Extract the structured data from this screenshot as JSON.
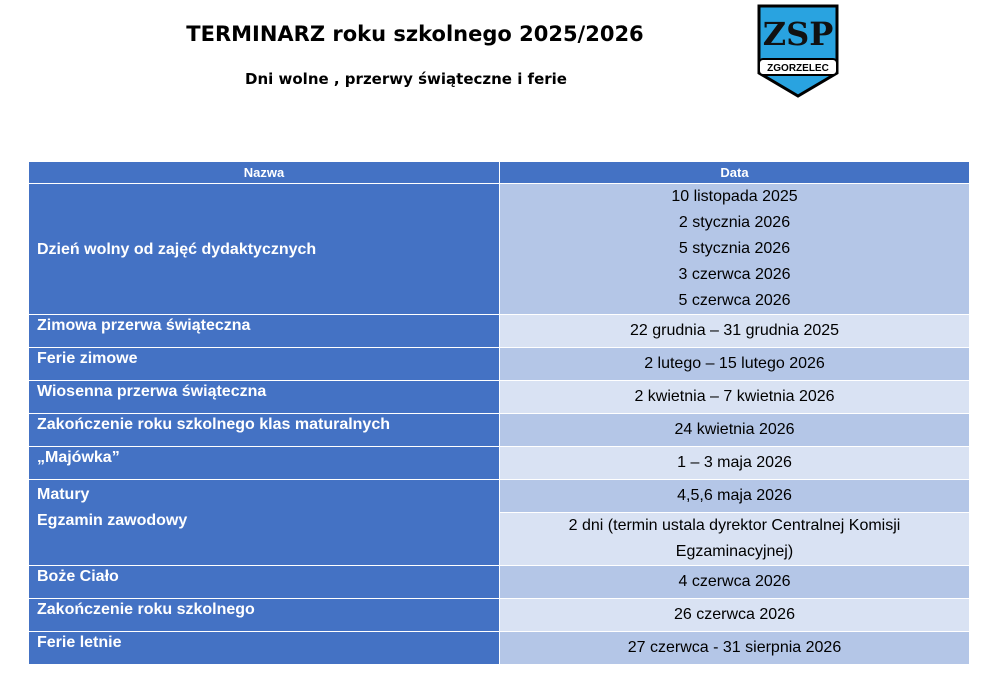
{
  "title": "TERMINARZ roku szkolnego 2025/2026",
  "subtitle": "Dni wolne , przerwy świąteczne i ferie",
  "logo": {
    "text_top": "ZSP",
    "text_bottom": "ZGORZELEC",
    "color": "#29a3e0"
  },
  "table": {
    "headers": [
      "Nazwa",
      "Data"
    ],
    "rows": [
      {
        "name": "Dzień wolny od zajęć dydaktycznych",
        "dates": [
          "10 listopada 2025",
          "2 stycznia 2026",
          "5 stycznia 2026",
          "3 czerwca 2026",
          "5 czerwca 2026"
        ]
      },
      {
        "name": "Zimowa przerwa świąteczna",
        "date": "22 grudnia – 31 grudnia 2025"
      },
      {
        "name": "Ferie zimowe",
        "date": "2 lutego – 15 lutego 2026"
      },
      {
        "name": "Wiosenna przerwa świąteczna",
        "date": "2 kwietnia – 7 kwietnia 2026"
      },
      {
        "name": "Zakończenie roku szkolnego klas maturalnych",
        "date": "24 kwietnia 2026"
      },
      {
        "name": "„Majówka”",
        "date": "1 – 3 maja 2026"
      },
      {
        "names": [
          "Matury",
          "Egzamin zawodowy"
        ],
        "dates": [
          "4,5,6 maja 2026",
          "2 dni (termin ustala dyrektor Centralnej Komisji Egzaminacyjnej)"
        ]
      },
      {
        "name": "Boże Ciało",
        "date": "4 czerwca 2026"
      },
      {
        "name": "Zakończenie roku szkolnego",
        "date": "26 czerwca 2026"
      },
      {
        "name": "Ferie letnie",
        "date": "27 czerwca - 31 sierpnia 2026"
      }
    ]
  },
  "colors": {
    "header": "#4472C4",
    "row_dark": "#B4C6E7",
    "row_light": "#D9E2F3"
  }
}
